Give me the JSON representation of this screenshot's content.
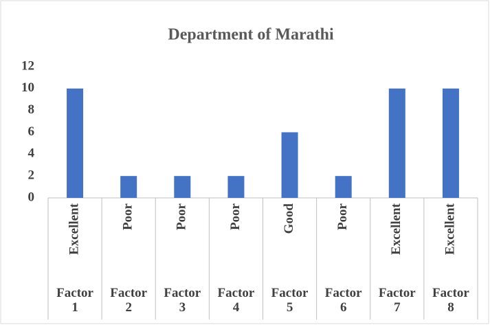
{
  "chart_data": {
    "type": "bar",
    "title": "Department of Marathi",
    "categories": [
      "Excellent",
      "Poor",
      "Poor",
      "Poor",
      "Good",
      "Poor",
      "Excellent",
      "Excellent"
    ],
    "groups": [
      "Factor 1",
      "Factor 2",
      "Factor 3",
      "Factor 4",
      "Factor 5",
      "Factor 6",
      "Factor 7",
      "Factor 8"
    ],
    "values": [
      10,
      2,
      2,
      2,
      6,
      2,
      10,
      10
    ],
    "color": "#4472c4",
    "ylim": [
      0,
      12
    ],
    "yticks": [
      0,
      2,
      4,
      6,
      8,
      10,
      12
    ],
    "grid": false
  }
}
